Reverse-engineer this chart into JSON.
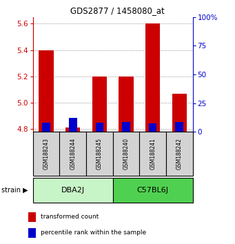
{
  "title": "GDS2877 / 1458080_at",
  "samples": [
    "GSM188243",
    "GSM188244",
    "GSM188245",
    "GSM188240",
    "GSM188241",
    "GSM188242"
  ],
  "transformed_counts": [
    5.4,
    4.81,
    5.2,
    5.2,
    5.6,
    5.07
  ],
  "percentile_ranks": [
    8.0,
    12.0,
    8.0,
    8.5,
    7.5,
    8.5
  ],
  "ymin": 4.78,
  "ymax": 5.65,
  "yticks": [
    4.8,
    5.0,
    5.2,
    5.4,
    5.6
  ],
  "y2ticks": [
    0,
    25,
    50,
    75,
    100
  ],
  "left_axis_color": "#cc0000",
  "right_axis_color": "#0000cc",
  "bar_color_red": "#cc0000",
  "bar_color_blue": "#0000cc",
  "bar_width": 0.55,
  "group1_label": "DBA2J",
  "group2_label": "C57BL6J",
  "group1_color": "#c8f5c8",
  "group2_color": "#50d050",
  "sample_box_color": "#d3d3d3",
  "legend_red_label": "transformed count",
  "legend_blue_label": "percentile rank within the sample"
}
